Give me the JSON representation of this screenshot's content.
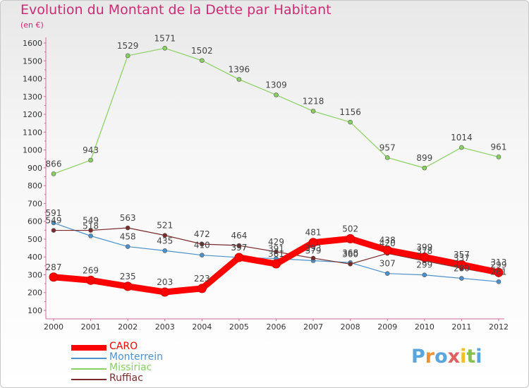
{
  "chart_data": {
    "type": "line",
    "title": "Evolution du Montant de la Dette par Habitant",
    "subtitle": "(en €)",
    "x": [
      "2000",
      "2001",
      "2002",
      "2003",
      "2004",
      "2005",
      "2006",
      "2007",
      "2008",
      "2009",
      "2010",
      "2011",
      "2012"
    ],
    "ylim": [
      100,
      1600
    ],
    "yticks": [
      100,
      200,
      300,
      400,
      500,
      600,
      700,
      800,
      900,
      1000,
      1100,
      1200,
      1300,
      1400,
      1500,
      1600
    ],
    "grid": false,
    "legend": "bottom-left",
    "series": [
      {
        "name": "CARO",
        "color": "#ff0000",
        "values": [
          287,
          269,
          235,
          203,
          223,
          397,
          361,
          481,
          502,
          438,
          399,
          357,
          313
        ]
      },
      {
        "name": "Monterrein",
        "color": "#4c91cc",
        "values": [
          591,
          518,
          458,
          435,
          410,
          397,
          391,
          379,
          368,
          307,
          299,
          280,
          261
        ]
      },
      {
        "name": "Missiriac",
        "color": "#88d060",
        "values": [
          866,
          943,
          1529,
          1571,
          1502,
          1396,
          1309,
          1218,
          1156,
          957,
          899,
          1014,
          961
        ]
      },
      {
        "name": "Ruffiac",
        "color": "#7a2a2a",
        "values": [
          549,
          549,
          563,
          521,
          472,
          464,
          429,
          393,
          360,
          420,
          378,
          337,
          299
        ]
      }
    ]
  },
  "brand": {
    "text": "Proxiti",
    "colors": [
      "#5aa5dd",
      "#f09030",
      "#5aa5dd",
      "#e06060",
      "#f0c020",
      "#88c050",
      "#5aa5dd"
    ]
  }
}
